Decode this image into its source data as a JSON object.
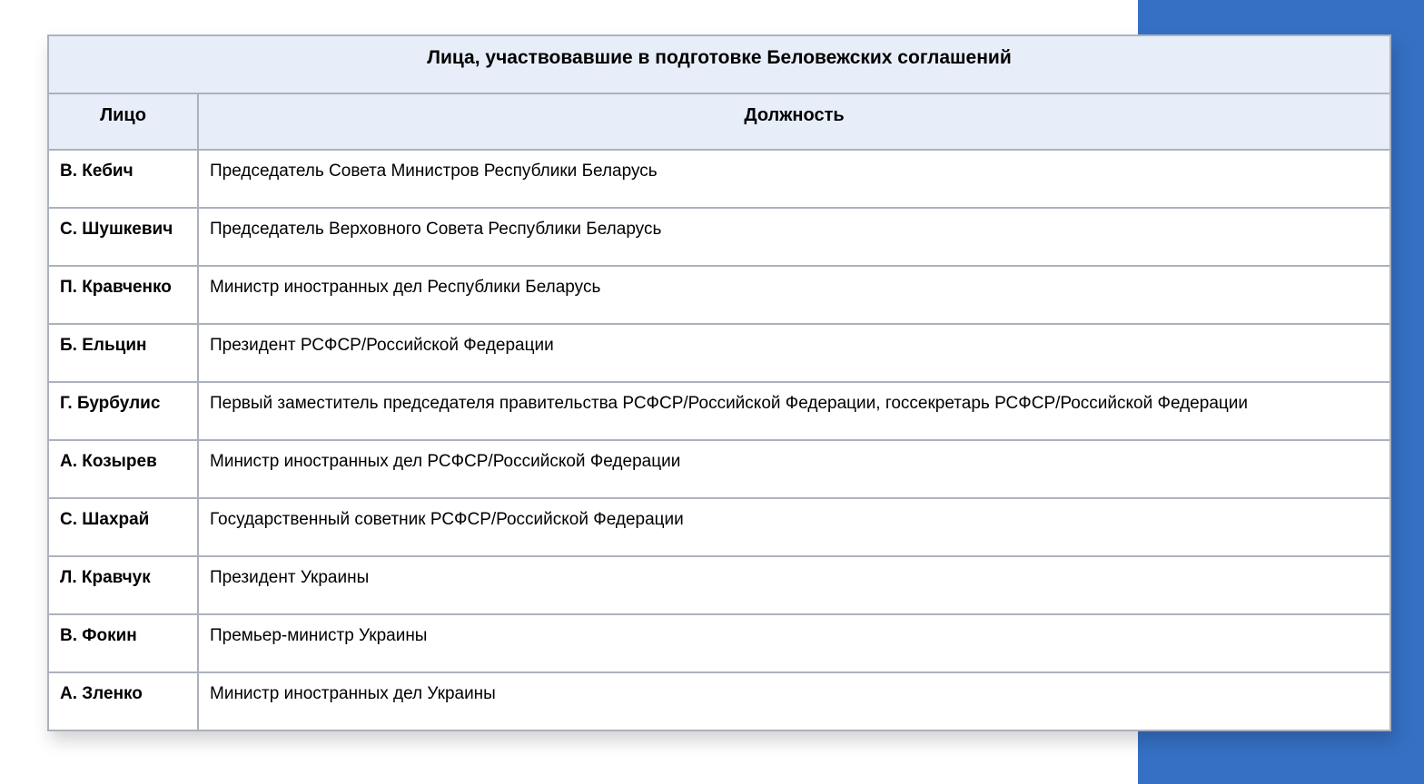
{
  "colors": {
    "page_bg": "#FFFFFF",
    "accent_blue": "#3570C4",
    "header_bg": "#E8EEF9",
    "border_gray": "#ACB2BD",
    "row_bg": "#FFFFFF",
    "text": "#000000"
  },
  "table": {
    "title": "Лица, участвовавшие в подготовке Беловежских соглашений",
    "columns": [
      "Лицо",
      "Должность"
    ],
    "rows": [
      {
        "person": "В. Кебич",
        "position": "Председатель Совета Министров Республики Беларусь"
      },
      {
        "person": "С. Шушкевич",
        "position": "Председатель Верховного Совета Республики Беларусь"
      },
      {
        "person": "П. Кравченко",
        "position": "Министр иностранных дел Республики Беларусь"
      },
      {
        "person": "Б. Ельцин",
        "position": "Президент РСФСР/Российской Федерации"
      },
      {
        "person": "Г. Бурбулис",
        "position": "Первый заместитель председателя правительства РСФСР/Российской Федерации, госсекретарь РСФСР/Российской Федерации"
      },
      {
        "person": "А. Козырев",
        "position": "Министр иностранных дел РСФСР/Российской Федерации"
      },
      {
        "person": "С. Шахрай",
        "position": "Государственный советник РСФСР/Российской Федерации"
      },
      {
        "person": "Л. Кравчук",
        "position": "Президент Украины"
      },
      {
        "person": "В. Фокин",
        "position": "Премьер-министр Украины"
      },
      {
        "person": "А. Зленко",
        "position": "Министр иностранных дел Украины"
      }
    ]
  }
}
